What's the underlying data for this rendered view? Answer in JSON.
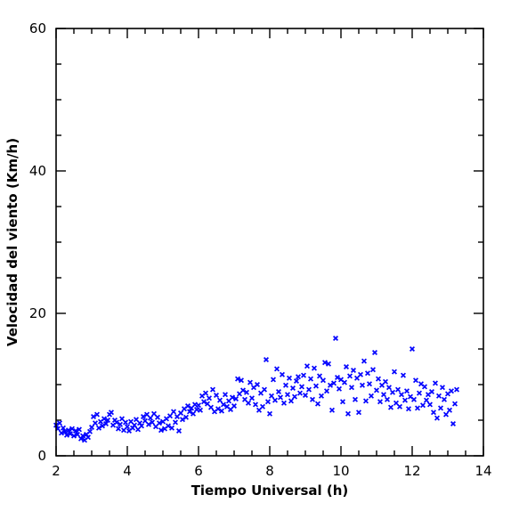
{
  "chart_data": {
    "type": "scatter",
    "title": "",
    "xlabel": "Tiempo Universal (h)",
    "ylabel": "Velocidad del viento (Km/h)",
    "xlim": [
      2,
      14
    ],
    "ylim": [
      0,
      60
    ],
    "x_ticks": [
      2,
      4,
      6,
      8,
      10,
      12,
      14
    ],
    "y_ticks": [
      0,
      20,
      40,
      60
    ],
    "x_tick_labels": [
      "2",
      "4",
      "6",
      "8",
      "10",
      "12",
      "14"
    ],
    "y_tick_labels": [
      "0",
      "20",
      "40",
      "60"
    ],
    "grid": false,
    "marker": "x",
    "color": "#0000ff",
    "series": [
      {
        "points": [
          [
            2.0,
            4.3
          ],
          [
            2.05,
            3.8
          ],
          [
            2.1,
            4.6
          ],
          [
            2.15,
            3.2
          ],
          [
            2.2,
            3.9
          ],
          [
            2.25,
            3.4
          ],
          [
            2.3,
            2.9
          ],
          [
            2.35,
            3.6
          ],
          [
            2.4,
            3.1
          ],
          [
            2.45,
            3.8
          ],
          [
            2.5,
            2.8
          ],
          [
            2.55,
            3.5
          ],
          [
            2.6,
            3.0
          ],
          [
            2.65,
            3.7
          ],
          [
            2.7,
            2.4
          ],
          [
            2.75,
            2.8
          ],
          [
            2.8,
            2.2
          ],
          [
            2.85,
            3.0
          ],
          [
            2.9,
            2.6
          ],
          [
            2.95,
            3.4
          ],
          [
            3.0,
            4.0
          ],
          [
            3.05,
            5.5
          ],
          [
            3.1,
            4.6
          ],
          [
            3.15,
            5.8
          ],
          [
            3.2,
            3.9
          ],
          [
            3.25,
            4.8
          ],
          [
            3.3,
            4.2
          ],
          [
            3.35,
            5.2
          ],
          [
            3.4,
            4.5
          ],
          [
            3.45,
            5.0
          ],
          [
            3.5,
            5.8
          ],
          [
            3.55,
            6.1
          ],
          [
            3.6,
            4.3
          ],
          [
            3.65,
            5.0
          ],
          [
            3.7,
            4.7
          ],
          [
            3.75,
            3.8
          ],
          [
            3.8,
            4.4
          ],
          [
            3.85,
            5.2
          ],
          [
            3.9,
            3.6
          ],
          [
            3.95,
            4.7
          ],
          [
            4.0,
            4.1
          ],
          [
            4.05,
            3.5
          ],
          [
            4.1,
            4.8
          ],
          [
            4.15,
            3.9
          ],
          [
            4.2,
            4.3
          ],
          [
            4.25,
            5.1
          ],
          [
            4.3,
            3.7
          ],
          [
            4.35,
            4.6
          ],
          [
            4.4,
            4.2
          ],
          [
            4.45,
            5.5
          ],
          [
            4.5,
            4.9
          ],
          [
            4.55,
            5.8
          ],
          [
            4.6,
            4.4
          ],
          [
            4.65,
            5.3
          ],
          [
            4.7,
            4.7
          ],
          [
            4.75,
            5.9
          ],
          [
            4.8,
            4.1
          ],
          [
            4.85,
            5.4
          ],
          [
            4.9,
            4.6
          ],
          [
            4.95,
            3.6
          ],
          [
            5.0,
            4.8
          ],
          [
            5.05,
            3.8
          ],
          [
            5.1,
            5.2
          ],
          [
            5.15,
            4.2
          ],
          [
            5.2,
            5.6
          ],
          [
            5.25,
            3.9
          ],
          [
            5.3,
            6.2
          ],
          [
            5.35,
            4.7
          ],
          [
            5.4,
            5.5
          ],
          [
            5.45,
            3.5
          ],
          [
            5.5,
            6.0
          ],
          [
            5.55,
            5.1
          ],
          [
            5.6,
            6.6
          ],
          [
            5.65,
            5.4
          ],
          [
            5.7,
            7.0
          ],
          [
            5.75,
            6.2
          ],
          [
            5.8,
            6.7
          ],
          [
            5.85,
            5.9
          ],
          [
            5.9,
            7.2
          ],
          [
            5.95,
            6.5
          ],
          [
            6.0,
            7.1
          ],
          [
            6.05,
            6.4
          ],
          [
            6.1,
            8.4
          ],
          [
            6.15,
            7.6
          ],
          [
            6.2,
            8.8
          ],
          [
            6.25,
            7.3
          ],
          [
            6.3,
            8.1
          ],
          [
            6.35,
            6.8
          ],
          [
            6.4,
            9.3
          ],
          [
            6.45,
            6.2
          ],
          [
            6.5,
            8.5
          ],
          [
            6.55,
            6.6
          ],
          [
            6.6,
            7.8
          ],
          [
            6.65,
            6.3
          ],
          [
            6.7,
            7.2
          ],
          [
            6.75,
            8.6
          ],
          [
            6.8,
            6.9
          ],
          [
            6.85,
            7.7
          ],
          [
            6.9,
            6.5
          ],
          [
            6.95,
            8.2
          ],
          [
            7.0,
            7.0
          ],
          [
            7.05,
            8.0
          ],
          [
            7.1,
            10.8
          ],
          [
            7.15,
            8.7
          ],
          [
            7.2,
            10.6
          ],
          [
            7.25,
            9.2
          ],
          [
            7.3,
            7.9
          ],
          [
            7.35,
            8.9
          ],
          [
            7.4,
            7.4
          ],
          [
            7.45,
            10.3
          ],
          [
            7.5,
            8.1
          ],
          [
            7.55,
            9.6
          ],
          [
            7.6,
            7.2
          ],
          [
            7.65,
            10.0
          ],
          [
            7.7,
            6.4
          ],
          [
            7.75,
            8.8
          ],
          [
            7.8,
            6.9
          ],
          [
            7.85,
            9.3
          ],
          [
            7.9,
            13.5
          ],
          [
            7.95,
            7.6
          ],
          [
            8.0,
            5.9
          ],
          [
            8.05,
            8.4
          ],
          [
            8.1,
            10.7
          ],
          [
            8.15,
            7.8
          ],
          [
            8.2,
            12.2
          ],
          [
            8.25,
            9.0
          ],
          [
            8.3,
            8.2
          ],
          [
            8.35,
            11.4
          ],
          [
            8.4,
            7.4
          ],
          [
            8.45,
            9.9
          ],
          [
            8.5,
            8.6
          ],
          [
            8.55,
            10.9
          ],
          [
            8.6,
            7.7
          ],
          [
            8.65,
            9.5
          ],
          [
            8.7,
            8.3
          ],
          [
            8.75,
            10.5
          ],
          [
            8.8,
            11.1
          ],
          [
            8.85,
            8.8
          ],
          [
            8.9,
            9.7
          ],
          [
            8.95,
            11.3
          ],
          [
            9.0,
            8.5
          ],
          [
            9.05,
            12.6
          ],
          [
            9.1,
            9.3
          ],
          [
            9.15,
            10.8
          ],
          [
            9.2,
            7.9
          ],
          [
            9.25,
            12.3
          ],
          [
            9.3,
            9.8
          ],
          [
            9.35,
            7.3
          ],
          [
            9.4,
            11.2
          ],
          [
            9.45,
            8.4
          ],
          [
            9.5,
            10.6
          ],
          [
            9.55,
            13.1
          ],
          [
            9.6,
            9.1
          ],
          [
            9.65,
            12.9
          ],
          [
            9.7,
            9.9
          ],
          [
            9.75,
            6.4
          ],
          [
            9.8,
            10.2
          ],
          [
            9.85,
            16.5
          ],
          [
            9.9,
            11.0
          ],
          [
            9.95,
            9.4
          ],
          [
            10.0,
            10.7
          ],
          [
            10.05,
            7.6
          ],
          [
            10.1,
            10.3
          ],
          [
            10.15,
            12.5
          ],
          [
            10.2,
            5.9
          ],
          [
            10.25,
            11.2
          ],
          [
            10.3,
            9.6
          ],
          [
            10.35,
            12.0
          ],
          [
            10.4,
            7.9
          ],
          [
            10.45,
            10.9
          ],
          [
            10.5,
            6.1
          ],
          [
            10.55,
            11.4
          ],
          [
            10.6,
            9.9
          ],
          [
            10.65,
            13.3
          ],
          [
            10.7,
            7.7
          ],
          [
            10.75,
            11.6
          ],
          [
            10.8,
            10.1
          ],
          [
            10.85,
            8.4
          ],
          [
            10.9,
            12.1
          ],
          [
            10.95,
            14.5
          ],
          [
            11.0,
            9.2
          ],
          [
            11.05,
            10.8
          ],
          [
            11.1,
            7.6
          ],
          [
            11.15,
            9.9
          ],
          [
            11.2,
            8.6
          ],
          [
            11.25,
            10.4
          ],
          [
            11.3,
            7.9
          ],
          [
            11.35,
            9.6
          ],
          [
            11.4,
            6.8
          ],
          [
            11.45,
            8.9
          ],
          [
            11.5,
            11.8
          ],
          [
            11.55,
            7.4
          ],
          [
            11.6,
            9.3
          ],
          [
            11.65,
            6.9
          ],
          [
            11.7,
            8.6
          ],
          [
            11.75,
            11.3
          ],
          [
            11.8,
            7.8
          ],
          [
            11.85,
            9.1
          ],
          [
            11.9,
            6.6
          ],
          [
            11.95,
            8.3
          ],
          [
            12.0,
            15.0
          ],
          [
            12.05,
            7.9
          ],
          [
            12.1,
            10.6
          ],
          [
            12.15,
            6.7
          ],
          [
            12.2,
            8.8
          ],
          [
            12.25,
            10.1
          ],
          [
            12.3,
            7.1
          ],
          [
            12.35,
            9.7
          ],
          [
            12.4,
            7.8
          ],
          [
            12.45,
            8.6
          ],
          [
            12.5,
            7.2
          ],
          [
            12.55,
            9.0
          ],
          [
            12.6,
            6.1
          ],
          [
            12.65,
            10.2
          ],
          [
            12.7,
            5.3
          ],
          [
            12.75,
            8.4
          ],
          [
            12.8,
            6.7
          ],
          [
            12.85,
            9.6
          ],
          [
            12.9,
            7.9
          ],
          [
            12.95,
            5.8
          ],
          [
            13.0,
            8.7
          ],
          [
            13.05,
            6.4
          ],
          [
            13.1,
            9.1
          ],
          [
            13.15,
            4.5
          ],
          [
            13.2,
            7.3
          ],
          [
            13.25,
            9.3
          ]
        ]
      }
    ]
  }
}
